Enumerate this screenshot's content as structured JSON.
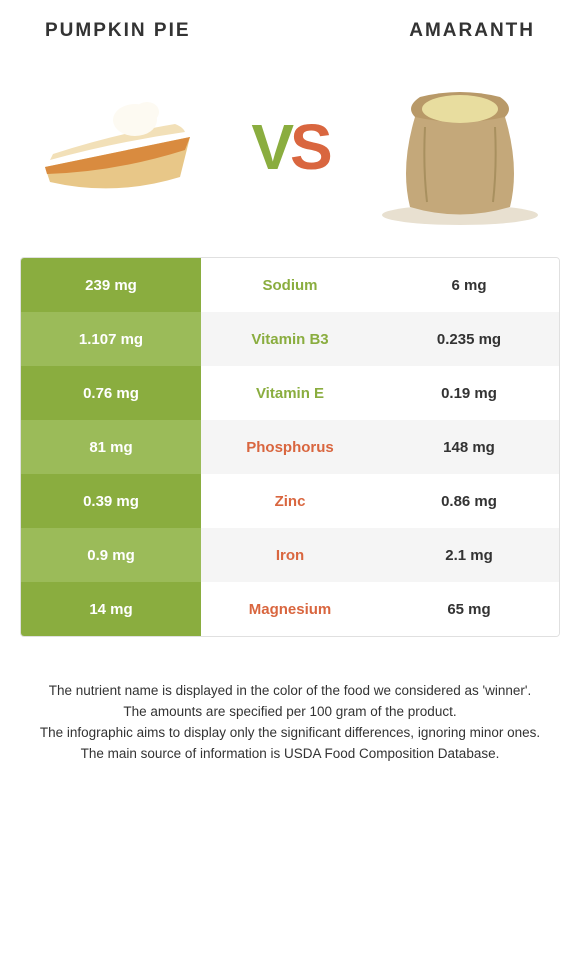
{
  "header": {
    "left_title": "PUMPKIN PIE",
    "right_title": "AMARANTH"
  },
  "vs": {
    "v": "V",
    "s": "S"
  },
  "colors": {
    "left_primary": "#8aad3f",
    "left_alt": "#9bbb59",
    "right_accent": "#d9663f",
    "row_alt_bg": "#f5f5f5",
    "text": "#333333"
  },
  "rows": [
    {
      "left": "239 mg",
      "label": "Sodium",
      "right": "6 mg",
      "winner": "left"
    },
    {
      "left": "1.107 mg",
      "label": "Vitamin B3",
      "right": "0.235 mg",
      "winner": "left"
    },
    {
      "left": "0.76 mg",
      "label": "Vitamin E",
      "right": "0.19 mg",
      "winner": "left"
    },
    {
      "left": "81 mg",
      "label": "Phosphorus",
      "right": "148 mg",
      "winner": "right"
    },
    {
      "left": "0.39 mg",
      "label": "Zinc",
      "right": "0.86 mg",
      "winner": "right"
    },
    {
      "left": "0.9 mg",
      "label": "Iron",
      "right": "2.1 mg",
      "winner": "right"
    },
    {
      "left": "14 mg",
      "label": "Magnesium",
      "right": "65 mg",
      "winner": "right"
    }
  ],
  "footer": {
    "line1": "The nutrient name is displayed in the color of the food we considered as 'winner'.",
    "line2": "The amounts are specified per 100 gram of the product.",
    "line3": "The infographic aims to display only the significant differences, ignoring minor ones.",
    "line4": "The main source of information is USDA Food Composition Database."
  }
}
